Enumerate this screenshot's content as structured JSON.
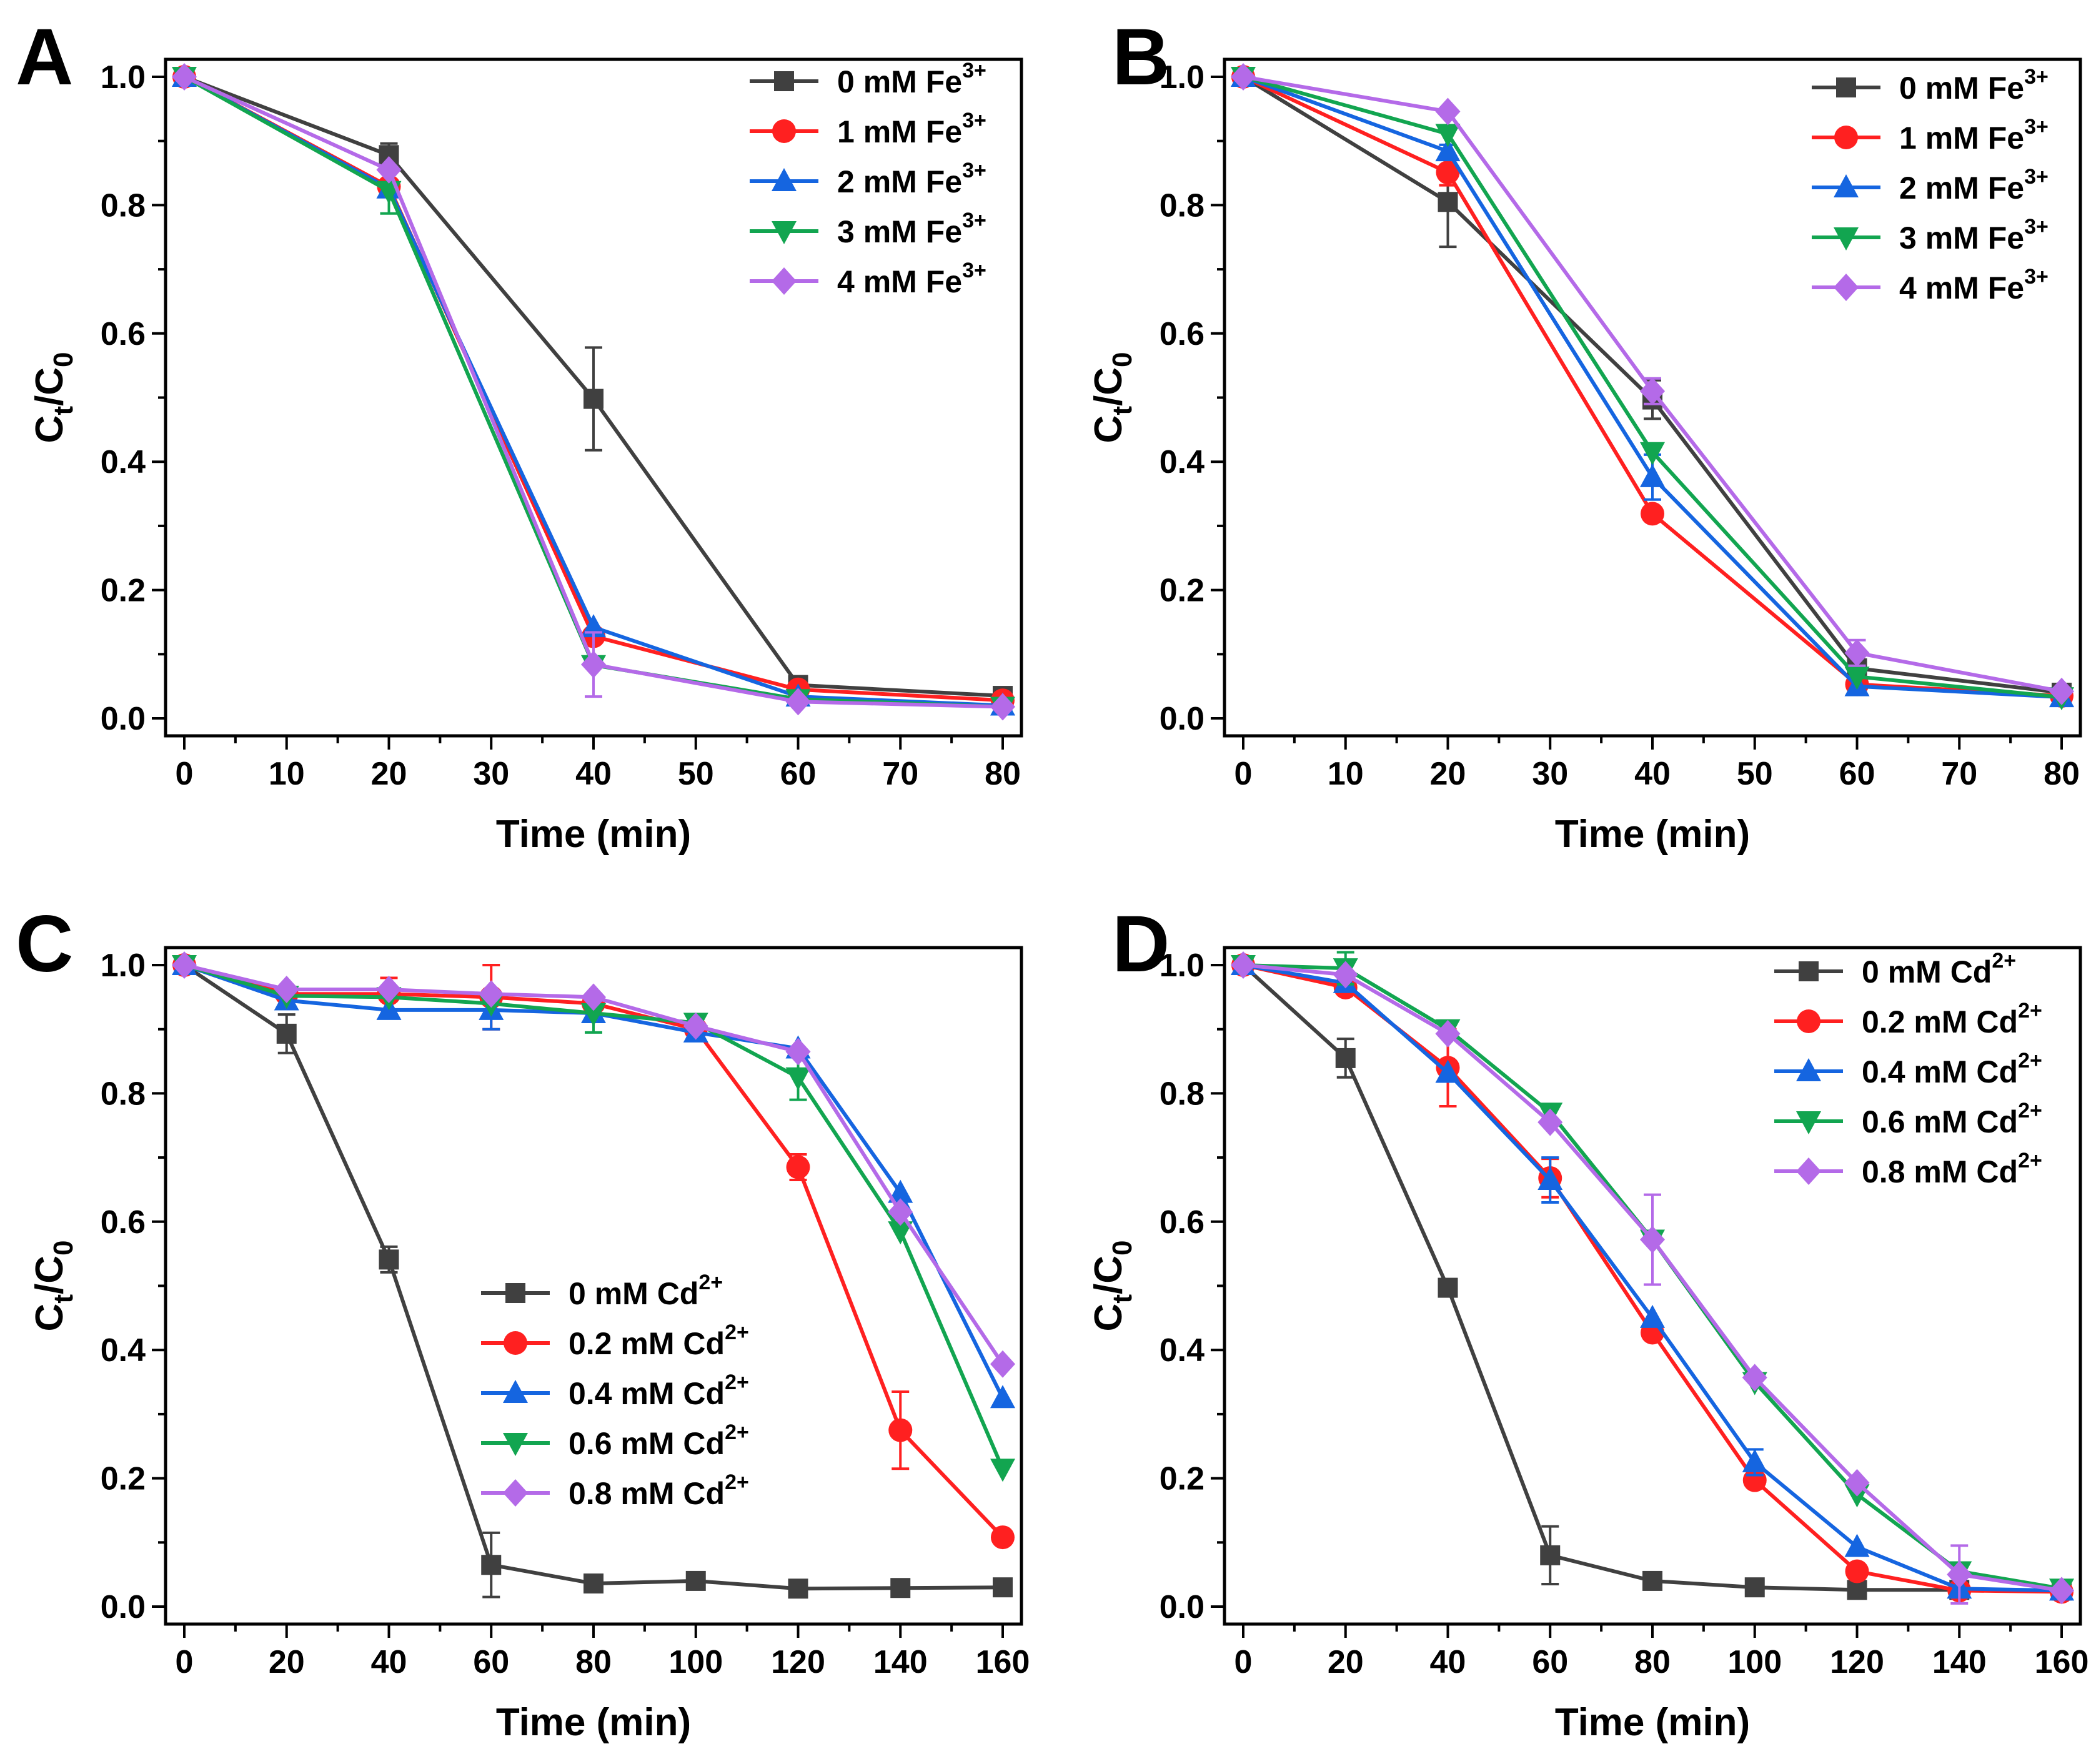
{
  "chart_data": [
    {
      "panel": "A",
      "type": "line",
      "xlabel": "Time (min)",
      "ylabel_main": "C",
      "ylabel_sub1": "t",
      "ylabel_slash": "/C",
      "ylabel_sub2": "0",
      "xlim": [
        0,
        80
      ],
      "ylim": [
        0,
        1.0
      ],
      "xticks": [
        "0",
        "10",
        "20",
        "30",
        "40",
        "50",
        "60",
        "70",
        "80"
      ],
      "yticks": [
        "0.0",
        "0.2",
        "0.4",
        "0.6",
        "0.8",
        "1.0"
      ],
      "x": [
        0,
        20,
        40,
        60,
        80
      ],
      "legend_position": "top-right",
      "series": [
        {
          "name": "0 mM Fe",
          "sup": "3+",
          "color": "#404040",
          "marker": "square",
          "values": [
            1.0,
            0.878,
            0.498,
            0.052,
            0.035
          ],
          "errors": [
            0,
            0.018,
            0.08,
            0.004,
            0.003
          ]
        },
        {
          "name": "1 mM Fe",
          "sup": "3+",
          "color": "#ff2020",
          "marker": "circle",
          "values": [
            1.0,
            0.829,
            0.128,
            0.045,
            0.028
          ],
          "errors": [
            0,
            0,
            0,
            0,
            0
          ]
        },
        {
          "name": "2 mM Fe",
          "sup": "3+",
          "color": "#1565e0",
          "marker": "triangle-up",
          "values": [
            1.0,
            0.826,
            0.142,
            0.034,
            0.02
          ],
          "errors": [
            0,
            0,
            0,
            0,
            0
          ]
        },
        {
          "name": "3 mM Fe",
          "sup": "3+",
          "color": "#12a550",
          "marker": "triangle-down",
          "values": [
            1.0,
            0.822,
            0.083,
            0.03,
            0.018
          ],
          "errors": [
            0,
            0.035,
            0,
            0,
            0
          ]
        },
        {
          "name": "4 mM Fe",
          "sup": "3+",
          "color": "#b46ae8",
          "marker": "diamond",
          "values": [
            1.0,
            0.855,
            0.084,
            0.026,
            0.018
          ],
          "errors": [
            0,
            0,
            0.05,
            0,
            0
          ]
        }
      ]
    },
    {
      "panel": "B",
      "type": "line",
      "xlabel": "Time (min)",
      "ylabel_main": "C",
      "ylabel_sub1": "t",
      "ylabel_slash": "/C",
      "ylabel_sub2": "0",
      "xlim": [
        0,
        80
      ],
      "ylim": [
        0,
        1.0
      ],
      "xticks": [
        "0",
        "10",
        "20",
        "30",
        "40",
        "50",
        "60",
        "70",
        "80"
      ],
      "yticks": [
        "0.0",
        "0.2",
        "0.4",
        "0.6",
        "0.8",
        "1.0"
      ],
      "x": [
        0,
        20,
        40,
        60,
        80
      ],
      "legend_position": "top-right",
      "series": [
        {
          "name": "0 mM Fe",
          "sup": "3+",
          "color": "#404040",
          "marker": "square",
          "values": [
            1.0,
            0.805,
            0.497,
            0.078,
            0.04
          ],
          "errors": [
            0,
            0.07,
            0.03,
            0.006,
            0.003
          ]
        },
        {
          "name": "1 mM Fe",
          "sup": "3+",
          "color": "#ff2020",
          "marker": "circle",
          "values": [
            1.0,
            0.851,
            0.319,
            0.053,
            0.035
          ],
          "errors": [
            0,
            0.02,
            0,
            0,
            0
          ]
        },
        {
          "name": "2 mM Fe",
          "sup": "3+",
          "color": "#1565e0",
          "marker": "triangle-up",
          "values": [
            1.0,
            0.884,
            0.376,
            0.05,
            0.033
          ],
          "errors": [
            0,
            0.01,
            0.035,
            0,
            0
          ]
        },
        {
          "name": "3 mM Fe",
          "sup": "3+",
          "color": "#12a550",
          "marker": "triangle-down",
          "values": [
            1.0,
            0.911,
            0.415,
            0.065,
            0.033
          ],
          "errors": [
            0,
            0,
            0,
            0,
            0
          ]
        },
        {
          "name": "4 mM Fe",
          "sup": "3+",
          "color": "#b46ae8",
          "marker": "diamond",
          "values": [
            1.0,
            0.946,
            0.51,
            0.102,
            0.042
          ],
          "errors": [
            0,
            0,
            0.02,
            0.02,
            0
          ]
        }
      ]
    },
    {
      "panel": "C",
      "type": "line",
      "xlabel": "Time (min)",
      "ylabel_main": "C",
      "ylabel_sub1": "t",
      "ylabel_slash": "/C",
      "ylabel_sub2": "0",
      "xlim": [
        0,
        160
      ],
      "ylim": [
        0,
        1.0
      ],
      "xticks": [
        "0",
        "20",
        "40",
        "60",
        "80",
        "100",
        "120",
        "140",
        "160"
      ],
      "yticks": [
        "0.0",
        "0.2",
        "0.4",
        "0.6",
        "0.8",
        "1.0"
      ],
      "x": [
        0,
        20,
        40,
        60,
        80,
        100,
        120,
        140,
        160
      ],
      "legend_position": "center",
      "series": [
        {
          "name": "0 mM Cd",
          "sup": "2+",
          "color": "#404040",
          "marker": "square",
          "values": [
            1.0,
            0.893,
            0.541,
            0.065,
            0.036,
            0.04,
            0.028,
            0.029,
            0.03
          ],
          "errors": [
            0,
            0.03,
            0.02,
            0.05,
            0,
            0,
            0,
            0,
            0
          ]
        },
        {
          "name": "0.2 mM Cd",
          "sup": "2+",
          "color": "#ff2020",
          "marker": "circle",
          "values": [
            1.0,
            0.955,
            0.955,
            0.95,
            0.94,
            0.9,
            0.685,
            0.275,
            0.108
          ],
          "errors": [
            0,
            0,
            0.025,
            0.05,
            0,
            0,
            0.02,
            0.06,
            0
          ]
        },
        {
          "name": "0.4 mM Cd",
          "sup": "2+",
          "color": "#1565e0",
          "marker": "triangle-up",
          "values": [
            1.0,
            0.945,
            0.93,
            0.93,
            0.925,
            0.895,
            0.87,
            0.645,
            0.325
          ],
          "errors": [
            0,
            0,
            0,
            0.03,
            0,
            0,
            0,
            0,
            0
          ]
        },
        {
          "name": "0.6 mM Cd",
          "sup": "2+",
          "color": "#12a550",
          "marker": "triangle-down",
          "values": [
            1.0,
            0.952,
            0.95,
            0.94,
            0.925,
            0.91,
            0.825,
            0.585,
            0.215
          ],
          "errors": [
            0,
            0,
            0,
            0,
            0.03,
            0,
            0.035,
            0,
            0
          ]
        },
        {
          "name": "0.8 mM Cd",
          "sup": "2+",
          "color": "#b46ae8",
          "marker": "diamond",
          "values": [
            1.0,
            0.962,
            0.962,
            0.955,
            0.95,
            0.905,
            0.865,
            0.615,
            0.378
          ],
          "errors": [
            0,
            0,
            0,
            0,
            0,
            0,
            0,
            0,
            0
          ]
        }
      ]
    },
    {
      "panel": "D",
      "type": "line",
      "xlabel": "Time (min)",
      "ylabel_main": "C",
      "ylabel_sub1": "t",
      "ylabel_slash": "/C",
      "ylabel_sub2": "0",
      "xlim": [
        0,
        160
      ],
      "ylim": [
        0,
        1.0
      ],
      "xticks": [
        "0",
        "20",
        "40",
        "60",
        "80",
        "100",
        "120",
        "140",
        "160"
      ],
      "yticks": [
        "0.0",
        "0.2",
        "0.4",
        "0.6",
        "0.8",
        "1.0"
      ],
      "x": [
        0,
        20,
        40,
        60,
        80,
        100,
        120,
        140,
        160
      ],
      "legend_position": "top-right",
      "series": [
        {
          "name": "0 mM Cd",
          "sup": "2+",
          "color": "#404040",
          "marker": "square",
          "values": [
            1.0,
            0.855,
            0.497,
            0.08,
            0.04,
            0.03,
            0.026,
            0.026,
            0.025
          ],
          "errors": [
            0,
            0.03,
            0,
            0.045,
            0,
            0,
            0,
            0,
            0
          ]
        },
        {
          "name": "0.2 mM Cd",
          "sup": "2+",
          "color": "#ff2020",
          "marker": "circle",
          "values": [
            1.0,
            0.965,
            0.84,
            0.668,
            0.427,
            0.197,
            0.055,
            0.025,
            0.023
          ],
          "errors": [
            0,
            0,
            0.06,
            0.03,
            0,
            0,
            0,
            0,
            0
          ]
        },
        {
          "name": "0.4 mM Cd",
          "sup": "2+",
          "color": "#1565e0",
          "marker": "triangle-up",
          "values": [
            1.0,
            0.972,
            0.832,
            0.665,
            0.45,
            0.225,
            0.093,
            0.028,
            0.025
          ],
          "errors": [
            0,
            0,
            0,
            0.035,
            0,
            0.02,
            0,
            0,
            0
          ]
        },
        {
          "name": "0.6 mM Cd",
          "sup": "2+",
          "color": "#12a550",
          "marker": "triangle-down",
          "values": [
            1.0,
            0.995,
            0.9,
            0.77,
            0.572,
            0.35,
            0.175,
            0.055,
            0.028
          ],
          "errors": [
            0,
            0.025,
            0,
            0,
            0,
            0,
            0,
            0,
            0
          ]
        },
        {
          "name": "0.8 mM Cd",
          "sup": "2+",
          "color": "#b46ae8",
          "marker": "diamond",
          "values": [
            1.0,
            0.985,
            0.893,
            0.755,
            0.572,
            0.357,
            0.193,
            0.05,
            0.025
          ],
          "errors": [
            0,
            0,
            0,
            0,
            0.07,
            0,
            0,
            0.045,
            0
          ]
        }
      ]
    }
  ]
}
